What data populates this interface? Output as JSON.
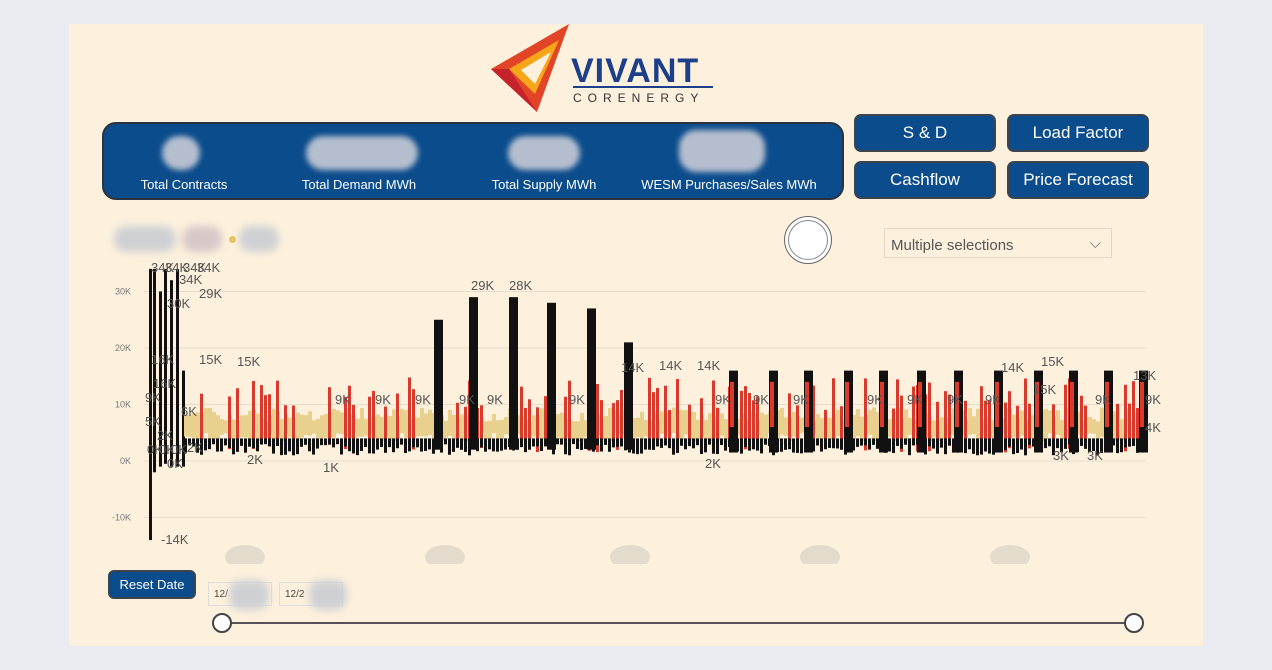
{
  "brand": {
    "name": "VIVANT",
    "tagline": "CORENERGY"
  },
  "kpis": [
    {
      "label": "Total Contracts"
    },
    {
      "label": "Total Demand MWh"
    },
    {
      "label": "Total Supply MWh"
    },
    {
      "label": "WESM Purchases/Sales MWh"
    }
  ],
  "nav": {
    "sd": "S & D",
    "load_factor": "Load Factor",
    "cashflow": "Cashflow",
    "price_forecast": "Price Forecast"
  },
  "filter": {
    "selected": "Multiple selections"
  },
  "reset_label": "Reset Date",
  "date_start": "12/",
  "date_end": "12/2",
  "colors": {
    "background": "#fdf1dd",
    "navy": "#0b4c8c",
    "demand": "#111111",
    "supply": "#d93a2b",
    "wesm": "#e8d18f"
  },
  "chart_data": {
    "type": "bar",
    "y_ticks": [
      "30K",
      "20K",
      "10K",
      "0K",
      "-10K"
    ],
    "ylim": [
      -14000,
      36000
    ],
    "grid": true,
    "labels": [
      "34K",
      "34K",
      "34K",
      "34K",
      "34K",
      "30K",
      "29K",
      "16K",
      "16K",
      "15K",
      "15K",
      "9K",
      "6K",
      "5K",
      "2K",
      "2K",
      "0K",
      "0K",
      "0K",
      "0K",
      "-14K",
      "2K",
      "1K",
      "9K",
      "9K",
      "9K",
      "9K",
      "29K",
      "28K",
      "9K",
      "9K",
      "14K",
      "14K",
      "14K",
      "9K",
      "9K",
      "9K",
      "2K",
      "9K",
      "9K",
      "9K",
      "9K",
      "14K",
      "15K",
      "15K",
      "9K",
      "13K",
      "9K",
      "4K",
      "3K",
      "3K"
    ]
  }
}
